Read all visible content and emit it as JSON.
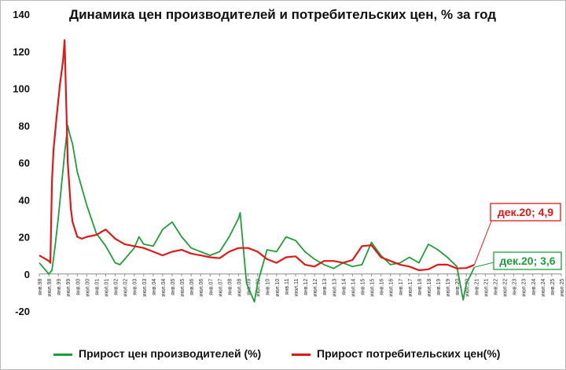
{
  "title": "Динамика цен производителей и потребительских цен, % за год",
  "chart_data": {
    "type": "line",
    "title": "Динамика цен производителей и потребительских цен, % за год",
    "xlabel": "",
    "ylabel": "",
    "ylim": [
      -20,
      140
    ],
    "yticks": [
      "-20",
      "0",
      "20",
      "40",
      "60",
      "80",
      "100",
      "120",
      "140"
    ],
    "grid": false,
    "legend_position": "bottom",
    "x_start": "янв.98",
    "x_end": "июл.25",
    "x_tick_labels": [
      "янв.98",
      "июл.98",
      "янв.99",
      "июл.99",
      "янв.00",
      "июл.00",
      "янв.01",
      "июл.01",
      "янв.02",
      "июл.02",
      "янв.03",
      "июл.03",
      "янв.04",
      "июл.04",
      "янв.05",
      "июл.05",
      "янв.06",
      "июл.06",
      "янв.07",
      "июл.07",
      "янв.08",
      "июл.08",
      "янв.09",
      "июл.09",
      "янв.10",
      "июл.10",
      "янв.11",
      "июл.11",
      "янв.12",
      "июл.12",
      "янв.13",
      "июл.13",
      "янв.14",
      "июл.14",
      "янв.15",
      "июл.15",
      "янв.16",
      "июл.16",
      "янв.17",
      "июл.17",
      "янв.18",
      "июл.18",
      "янв.19",
      "июл.19",
      "янв.20",
      "июл.20",
      "янв.21",
      "июл.21",
      "янв.22",
      "июл.22",
      "янв.23",
      "июл.23",
      "янв.24",
      "июл.24",
      "янв.25",
      "июл.25"
    ],
    "series": [
      {
        "name": "Прирост цен производителей (%)",
        "color": "#1f9e3a",
        "x_dates": [
          "янв.98",
          "июл.98",
          "сен.98",
          "ноя.98",
          "янв.99",
          "май.99",
          "июл.99",
          "авг.99",
          "окт.99",
          "янв.00",
          "июл.00",
          "янв.01",
          "июл.01",
          "янв.02",
          "апр.02",
          "июл.02",
          "янв.03",
          "апр.03",
          "июл.03",
          "янв.04",
          "июл.04",
          "янв.05",
          "июл.05",
          "янв.06",
          "июл.06",
          "янв.07",
          "июл.07",
          "янв.08",
          "июл.08",
          "авг.08",
          "дек.08",
          "май.09",
          "июл.09",
          "янв.10",
          "июл.10",
          "янв.11",
          "июл.11",
          "янв.12",
          "июл.12",
          "янв.13",
          "июл.13",
          "янв.14",
          "июл.14",
          "янв.15",
          "июл.15",
          "янв.16",
          "июл.16",
          "янв.17",
          "июл.17",
          "янв.18",
          "июл.18",
          "янв.19",
          "июл.19",
          "янв.20",
          "май.20",
          "июл.20",
          "окт.20",
          "дек.20"
        ],
        "values": [
          6,
          0,
          2,
          15,
          30,
          65,
          80,
          76,
          70,
          55,
          37,
          22,
          15,
          6,
          5,
          8,
          14,
          20,
          16,
          15,
          24,
          28,
          20,
          14,
          12,
          10,
          12,
          20,
          30,
          33,
          -5,
          -15,
          -5,
          13,
          12,
          20,
          18,
          12,
          8,
          5,
          3,
          6,
          4,
          5,
          17,
          10,
          5,
          6,
          9,
          6,
          16,
          13,
          9,
          4,
          -14,
          -5,
          0,
          3.6
        ]
      },
      {
        "name": "Прирост потребительских цен(%)",
        "color": "#e01818",
        "x_dates": [
          "янв.98",
          "июл.98",
          "авг.98",
          "сен.98",
          "окт.98",
          "дек.98",
          "фев.99",
          "апр.99",
          "май.99",
          "июл.99",
          "сен.99",
          "окт.99",
          "янв.00",
          "апр.00",
          "июл.00",
          "янв.01",
          "июл.01",
          "янв.02",
          "июл.02",
          "янв.03",
          "июл.03",
          "янв.04",
          "июл.04",
          "янв.05",
          "июл.05",
          "янв.06",
          "июл.06",
          "янв.07",
          "июл.07",
          "янв.08",
          "июл.08",
          "янв.09",
          "июл.09",
          "янв.10",
          "июл.10",
          "янв.11",
          "июл.11",
          "янв.12",
          "июл.12",
          "янв.13",
          "июл.13",
          "янв.14",
          "июл.14",
          "янв.15",
          "июл.15",
          "янв.16",
          "июл.16",
          "янв.17",
          "июл.17",
          "янв.18",
          "июл.18",
          "янв.19",
          "июл.19",
          "янв.20",
          "июл.20",
          "дек.20"
        ],
        "values": [
          10,
          7,
          6,
          50,
          67,
          85,
          102,
          115,
          126,
          60,
          35,
          28,
          20,
          19,
          20,
          21,
          24,
          19,
          16,
          15,
          14,
          12,
          10,
          12,
          13,
          11,
          10,
          9,
          8.5,
          12,
          14,
          14,
          12,
          8,
          6,
          9,
          9.5,
          5,
          4,
          7,
          7,
          6,
          7.5,
          15,
          15.5,
          9,
          7,
          5,
          4,
          2,
          2.5,
          5,
          5,
          3,
          3.2,
          4.9
        ]
      }
    ],
    "annotations": [
      {
        "text": "дек.20; 4,9",
        "series": "Прирост потребительских цен(%)",
        "date": "дек.20",
        "value": 4.9,
        "color": "#e01818"
      },
      {
        "text": "дек.20; 3,6",
        "series": "Прирост цен производителей (%)",
        "date": "дек.20",
        "value": 3.6,
        "color": "#1f9e3a"
      }
    ]
  },
  "legend": {
    "producer_label": "Прирост цен производителей (%)",
    "consumer_label": "Прирост потребительских цен(%)",
    "producer_color": "#1f9e3a",
    "consumer_color": "#e01818"
  }
}
